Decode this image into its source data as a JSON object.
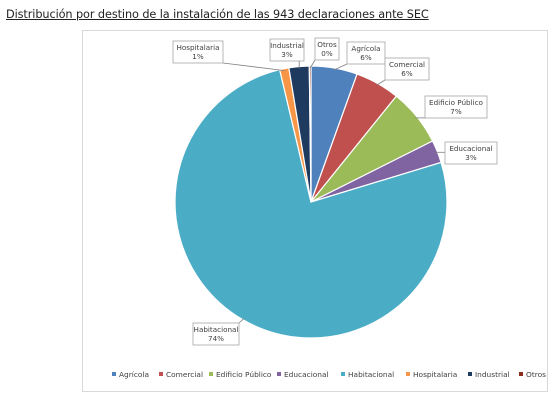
{
  "page": {
    "title": "Distribución por destino de la instalación de las 943 declaraciones ante SEC"
  },
  "chart_data": {
    "type": "pie",
    "title": "",
    "legend_position": "bottom",
    "slices": [
      {
        "name": "Agrícola",
        "value": 6,
        "label": "6%",
        "color": "#4F81BD"
      },
      {
        "name": "Comercial",
        "value": 6,
        "label": "6%",
        "color": "#C0504D"
      },
      {
        "name": "Edificio Público",
        "value": 7,
        "label": "7%",
        "color": "#9BBB59"
      },
      {
        "name": "Educacional",
        "value": 3,
        "label": "3%",
        "color": "#8064A2"
      },
      {
        "name": "Habitacional",
        "value": 74,
        "label": "74%",
        "color": "#4BACC6"
      },
      {
        "name": "Hospitalaria",
        "value": 1,
        "label": "1%",
        "color": "#F79646"
      },
      {
        "name": "Industrial",
        "value": 3,
        "label": "3%",
        "color": "#1F3A5F"
      },
      {
        "name": "Otros",
        "value": 0,
        "label": "0%",
        "color": "#8B2D1A"
      }
    ]
  }
}
